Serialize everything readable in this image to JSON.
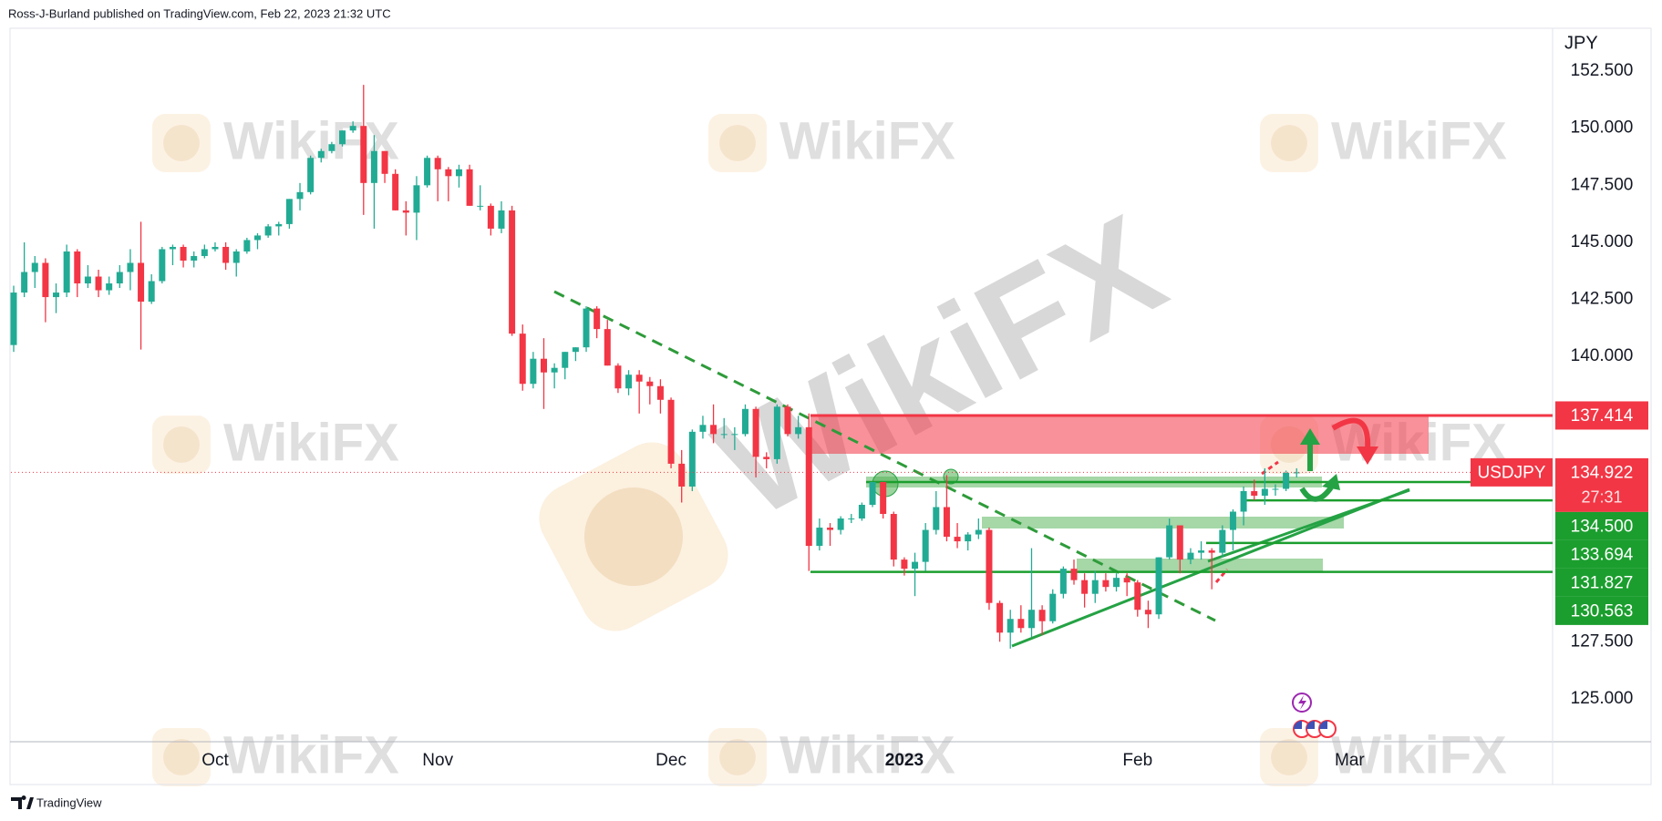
{
  "header": "Ross-J-Burland published on TradingView.com, Feb 22, 2023 21:32 UTC",
  "footer": "TradingView",
  "watermark": "WikiFX",
  "chart_data": {
    "type": "candlestick",
    "y_label": "JPY",
    "countdown": "27:31",
    "ylim": [
      123.12,
      154.34
    ],
    "yticks": [
      {
        "value": 125,
        "label": "125.000"
      },
      {
        "value": 127.5,
        "label": "127.500"
      },
      {
        "value": 130,
        "label": "130.000"
      },
      {
        "value": 132.5,
        "label": "132.500"
      },
      {
        "value": 135,
        "label": "135.000"
      },
      {
        "value": 137.5,
        "label": "137.500"
      },
      {
        "value": 140,
        "label": "140.000"
      },
      {
        "value": 142.5,
        "label": "142.500"
      },
      {
        "value": 145,
        "label": "145.000"
      },
      {
        "value": 147.5,
        "label": "147.500"
      },
      {
        "value": 150,
        "label": "150.000"
      },
      {
        "value": 152.5,
        "label": "152.500"
      }
    ],
    "grid": false,
    "categories": [
      null,
      null,
      null,
      null,
      null,
      null,
      null,
      null,
      null,
      null,
      null,
      null,
      null,
      null,
      null,
      null,
      null,
      null,
      null,
      "Oct",
      null,
      null,
      null,
      null,
      null,
      null,
      null,
      null,
      null,
      null,
      null,
      null,
      null,
      null,
      null,
      null,
      null,
      null,
      null,
      null,
      "Nov",
      null,
      null,
      null,
      null,
      null,
      null,
      null,
      null,
      null,
      null,
      null,
      null,
      null,
      null,
      null,
      null,
      null,
      null,
      null,
      null,
      null,
      "Dec",
      null,
      null,
      null,
      null,
      null,
      null,
      null,
      null,
      null,
      null,
      null,
      null,
      null,
      null,
      null,
      null,
      null,
      null,
      null,
      null,
      null,
      "2023",
      null,
      null,
      null,
      null,
      null,
      null,
      null,
      null,
      null,
      null,
      null,
      null,
      null,
      null,
      null,
      null,
      null,
      null,
      null,
      null,
      null,
      "Feb",
      null,
      null,
      null,
      null,
      null,
      null,
      null,
      null,
      null,
      null,
      null,
      null,
      null,
      null,
      null,
      null,
      null,
      null,
      null,
      "Mar"
    ],
    "series": [
      {
        "name": "USDJPY",
        "up_color": "#22ab94",
        "down_color": "#f23645",
        "values": [
          [
            140.5,
            143.1,
            140.2,
            142.8
          ],
          [
            142.8,
            145.0,
            142.6,
            143.7
          ],
          [
            143.7,
            144.4,
            143.0,
            144.1
          ],
          [
            144.1,
            144.3,
            141.5,
            142.6
          ],
          [
            142.6,
            143.2,
            141.9,
            142.8
          ],
          [
            142.8,
            144.9,
            142.6,
            144.6
          ],
          [
            144.6,
            144.7,
            142.6,
            143.2
          ],
          [
            143.2,
            144.0,
            143.0,
            143.5
          ],
          [
            143.5,
            143.8,
            142.6,
            142.9
          ],
          [
            142.9,
            143.5,
            142.7,
            143.2
          ],
          [
            143.2,
            144.0,
            143.0,
            143.7
          ],
          [
            143.7,
            144.7,
            142.9,
            144.1
          ],
          [
            144.1,
            145.9,
            140.3,
            142.4
          ],
          [
            142.4,
            143.6,
            142.3,
            143.3
          ],
          [
            143.3,
            144.8,
            143.2,
            144.7
          ],
          [
            144.7,
            144.9,
            144.0,
            144.8
          ],
          [
            144.8,
            144.9,
            143.9,
            144.2
          ],
          [
            144.2,
            144.6,
            143.9,
            144.4
          ],
          [
            144.4,
            144.9,
            144.3,
            144.7
          ],
          [
            144.7,
            145.0,
            144.6,
            144.8
          ],
          [
            144.8,
            145.0,
            143.8,
            144.1
          ],
          [
            144.1,
            144.7,
            143.5,
            144.6
          ],
          [
            144.6,
            145.2,
            144.5,
            145.1
          ],
          [
            145.1,
            145.4,
            144.7,
            145.3
          ],
          [
            145.3,
            145.8,
            145.2,
            145.7
          ],
          [
            145.7,
            145.9,
            145.3,
            145.8
          ],
          [
            145.8,
            146.9,
            145.6,
            146.9
          ],
          [
            146.9,
            147.6,
            146.4,
            147.2
          ],
          [
            147.2,
            148.8,
            147.1,
            148.7
          ],
          [
            148.7,
            149.1,
            148.5,
            149.0
          ],
          [
            149.0,
            149.4,
            148.9,
            149.3
          ],
          [
            149.3,
            149.9,
            149.2,
            149.9
          ],
          [
            149.9,
            150.3,
            149.8,
            150.1
          ],
          [
            150.1,
            151.9,
            146.2,
            147.6
          ],
          [
            147.6,
            149.7,
            145.6,
            149.0
          ],
          [
            149.0,
            149.0,
            147.6,
            148.0
          ],
          [
            148.0,
            148.2,
            146.4,
            146.4
          ],
          [
            146.4,
            146.8,
            145.3,
            146.3
          ],
          [
            146.3,
            147.9,
            145.1,
            147.5
          ],
          [
            147.5,
            148.8,
            147.4,
            148.7
          ],
          [
            148.7,
            148.8,
            146.8,
            148.2
          ],
          [
            148.2,
            148.3,
            146.8,
            147.9
          ],
          [
            147.9,
            148.4,
            147.4,
            148.2
          ],
          [
            148.2,
            148.4,
            146.6,
            146.6
          ],
          [
            146.6,
            147.5,
            146.4,
            146.6
          ],
          [
            146.6,
            146.7,
            145.3,
            145.6
          ],
          [
            145.6,
            146.8,
            145.4,
            146.4
          ],
          [
            146.4,
            146.6,
            140.9,
            141.0
          ],
          [
            141.0,
            141.4,
            138.5,
            138.8
          ],
          [
            138.8,
            140.2,
            138.6,
            139.9
          ],
          [
            139.9,
            140.8,
            137.7,
            139.3
          ],
          [
            139.3,
            139.7,
            138.6,
            139.5
          ],
          [
            139.5,
            140.2,
            139.0,
            140.2
          ],
          [
            140.2,
            140.4,
            139.8,
            140.4
          ],
          [
            140.4,
            142.2,
            140.2,
            142.1
          ],
          [
            142.1,
            142.2,
            140.8,
            141.2
          ],
          [
            141.2,
            141.6,
            139.6,
            139.6
          ],
          [
            139.6,
            139.7,
            138.4,
            138.6
          ],
          [
            138.6,
            139.4,
            138.3,
            139.2
          ],
          [
            139.2,
            139.4,
            137.5,
            138.9
          ],
          [
            138.9,
            139.1,
            137.9,
            138.7
          ],
          [
            138.7,
            139.0,
            137.5,
            138.1
          ],
          [
            138.1,
            138.2,
            135.1,
            135.3
          ],
          [
            135.3,
            135.9,
            133.6,
            134.3
          ],
          [
            134.3,
            136.8,
            134.1,
            136.7
          ],
          [
            136.7,
            137.4,
            136.4,
            137.0
          ],
          [
            137.0,
            137.9,
            136.2,
            136.6
          ],
          [
            136.6,
            137.3,
            136.4,
            136.6
          ],
          [
            136.6,
            136.9,
            135.9,
            136.6
          ],
          [
            136.6,
            137.9,
            136.5,
            137.7
          ],
          [
            137.7,
            137.8,
            134.7,
            135.6
          ],
          [
            135.6,
            135.8,
            135.1,
            135.5
          ],
          [
            135.5,
            137.9,
            135.3,
            137.8
          ],
          [
            137.8,
            137.9,
            136.5,
            136.6
          ],
          [
            136.6,
            137.4,
            136.4,
            136.9
          ],
          [
            136.9,
            137.5,
            130.6,
            131.7
          ],
          [
            131.7,
            132.9,
            131.5,
            132.5
          ],
          [
            132.5,
            132.7,
            131.7,
            132.4
          ],
          [
            132.4,
            133.0,
            132.2,
            132.9
          ],
          [
            132.9,
            133.1,
            132.7,
            132.9
          ],
          [
            132.9,
            133.6,
            132.8,
            133.5
          ],
          [
            133.5,
            134.5,
            133.4,
            134.5
          ],
          [
            134.5,
            134.5,
            132.9,
            133.1
          ],
          [
            133.1,
            133.2,
            130.8,
            131.1
          ],
          [
            131.1,
            131.2,
            130.4,
            130.7
          ],
          [
            130.7,
            131.4,
            129.5,
            131.0
          ],
          [
            131.0,
            132.7,
            130.6,
            132.4
          ],
          [
            132.4,
            134.1,
            132.2,
            133.4
          ],
          [
            133.4,
            134.8,
            131.9,
            132.1
          ],
          [
            132.1,
            132.7,
            131.6,
            131.9
          ],
          [
            131.9,
            132.3,
            131.5,
            132.2
          ],
          [
            132.2,
            132.9,
            132.0,
            132.4
          ],
          [
            132.4,
            132.5,
            128.9,
            129.2
          ],
          [
            129.2,
            129.3,
            127.5,
            127.9
          ],
          [
            127.9,
            128.9,
            127.2,
            128.5
          ],
          [
            128.5,
            129.1,
            127.9,
            128.1
          ],
          [
            128.1,
            131.6,
            127.7,
            128.9
          ],
          [
            128.9,
            129.1,
            127.8,
            128.4
          ],
          [
            128.4,
            129.8,
            128.3,
            129.6
          ],
          [
            129.6,
            130.8,
            129.4,
            130.7
          ],
          [
            130.7,
            131.1,
            130.0,
            130.2
          ],
          [
            130.2,
            130.5,
            129.0,
            129.6
          ],
          [
            129.6,
            130.6,
            129.2,
            130.2
          ],
          [
            130.2,
            130.5,
            129.7,
            129.9
          ],
          [
            129.9,
            130.5,
            129.7,
            130.3
          ],
          [
            130.3,
            130.5,
            129.5,
            130.1
          ],
          [
            130.1,
            130.2,
            128.6,
            128.9
          ],
          [
            128.9,
            129.3,
            128.1,
            128.7
          ],
          [
            128.7,
            131.2,
            128.5,
            131.2
          ],
          [
            131.2,
            132.9,
            131.1,
            132.6
          ],
          [
            132.6,
            132.6,
            130.5,
            131.1
          ],
          [
            131.1,
            131.6,
            130.9,
            131.4
          ],
          [
            131.4,
            131.9,
            131.1,
            131.5
          ],
          [
            131.5,
            131.6,
            129.8,
            131.4
          ],
          [
            131.4,
            132.6,
            131.2,
            132.4
          ],
          [
            132.4,
            133.3,
            131.5,
            133.2
          ],
          [
            133.2,
            134.3,
            132.6,
            134.1
          ],
          [
            134.1,
            134.6,
            133.7,
            133.9
          ],
          [
            133.9,
            135.1,
            133.5,
            134.2
          ],
          [
            134.2,
            134.4,
            133.9,
            134.2
          ],
          [
            134.2,
            135.0,
            134.1,
            134.9
          ],
          [
            134.9,
            135.1,
            134.7,
            134.922
          ],
          null,
          null,
          null,
          null,
          null
        ]
      }
    ],
    "levels": [
      {
        "value": 137.414,
        "color": "#f23645"
      },
      {
        "value": 134.5,
        "label": "134.500",
        "color": "#1b9e2e"
      },
      {
        "value": 133.694,
        "color": "#1b9e2e"
      },
      {
        "value": 131.827,
        "color": "#1b9e2e"
      },
      {
        "value": 130.563,
        "color": "#1b9e2e"
      }
    ]
  }
}
